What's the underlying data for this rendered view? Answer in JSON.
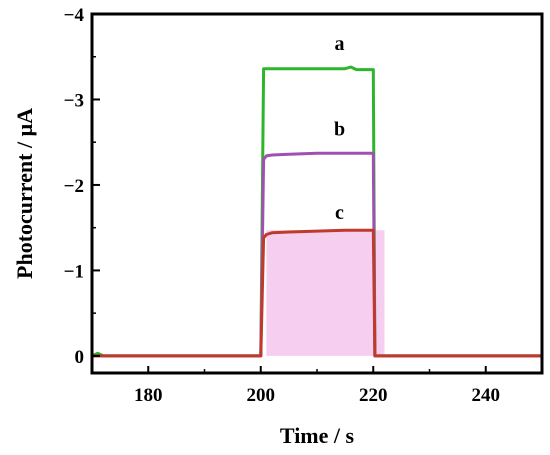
{
  "chart_data": {
    "type": "line",
    "title": "",
    "xlabel": "Time / s",
    "ylabel": "Photocurrent / μA",
    "xlim": [
      170,
      250
    ],
    "ylim": [
      0.2,
      -4
    ],
    "y_axis_inverted": true,
    "grid": false,
    "legend": "none",
    "x_ticks": [
      180,
      200,
      220,
      240
    ],
    "x_tick_labels": [
      "180",
      "200",
      "220",
      "240"
    ],
    "y_ticks": [
      0,
      -1,
      -2,
      -3,
      -4
    ],
    "y_tick_labels": [
      "0",
      "−1",
      "−2",
      "−3",
      "−4"
    ],
    "series": [
      {
        "name": "a",
        "color": "#2db52d",
        "x": [
          170,
          171,
          172,
          200,
          200.5,
          201,
          215,
          216,
          217,
          220,
          220.3,
          222,
          250
        ],
        "y": [
          0.0,
          -0.03,
          0.0,
          0.0,
          -3.36,
          -3.36,
          -3.36,
          -3.38,
          -3.35,
          -3.35,
          0.0,
          0.0,
          0.0
        ]
      },
      {
        "name": "b",
        "color": "#a050b0",
        "x": [
          170,
          200,
          200.5,
          201,
          202,
          205,
          210,
          215,
          220,
          220.3,
          222,
          250
        ],
        "y": [
          0.0,
          0.0,
          -2.3,
          -2.34,
          -2.35,
          -2.36,
          -2.37,
          -2.37,
          -2.37,
          0.0,
          0.0,
          0.0
        ]
      },
      {
        "name": "c",
        "color": "#c03a2b",
        "x": [
          170,
          200,
          200.5,
          201,
          202,
          205,
          210,
          215,
          220,
          220.3,
          222,
          250
        ],
        "y": [
          0.0,
          0.0,
          -1.38,
          -1.42,
          -1.44,
          -1.45,
          -1.46,
          -1.47,
          -1.47,
          0.0,
          0.0,
          0.0
        ]
      }
    ],
    "annotations": [
      {
        "text": "a",
        "x": 214,
        "y": -3.58,
        "color": "#000000"
      },
      {
        "text": "b",
        "x": 214,
        "y": -2.58,
        "color": "#000000"
      },
      {
        "text": "c",
        "x": 214,
        "y": -1.6,
        "color": "#000000"
      }
    ],
    "highlight_band": {
      "x": [
        201,
        222
      ],
      "y": [
        0.0,
        -1.47
      ],
      "color": "#f6cff0"
    }
  }
}
